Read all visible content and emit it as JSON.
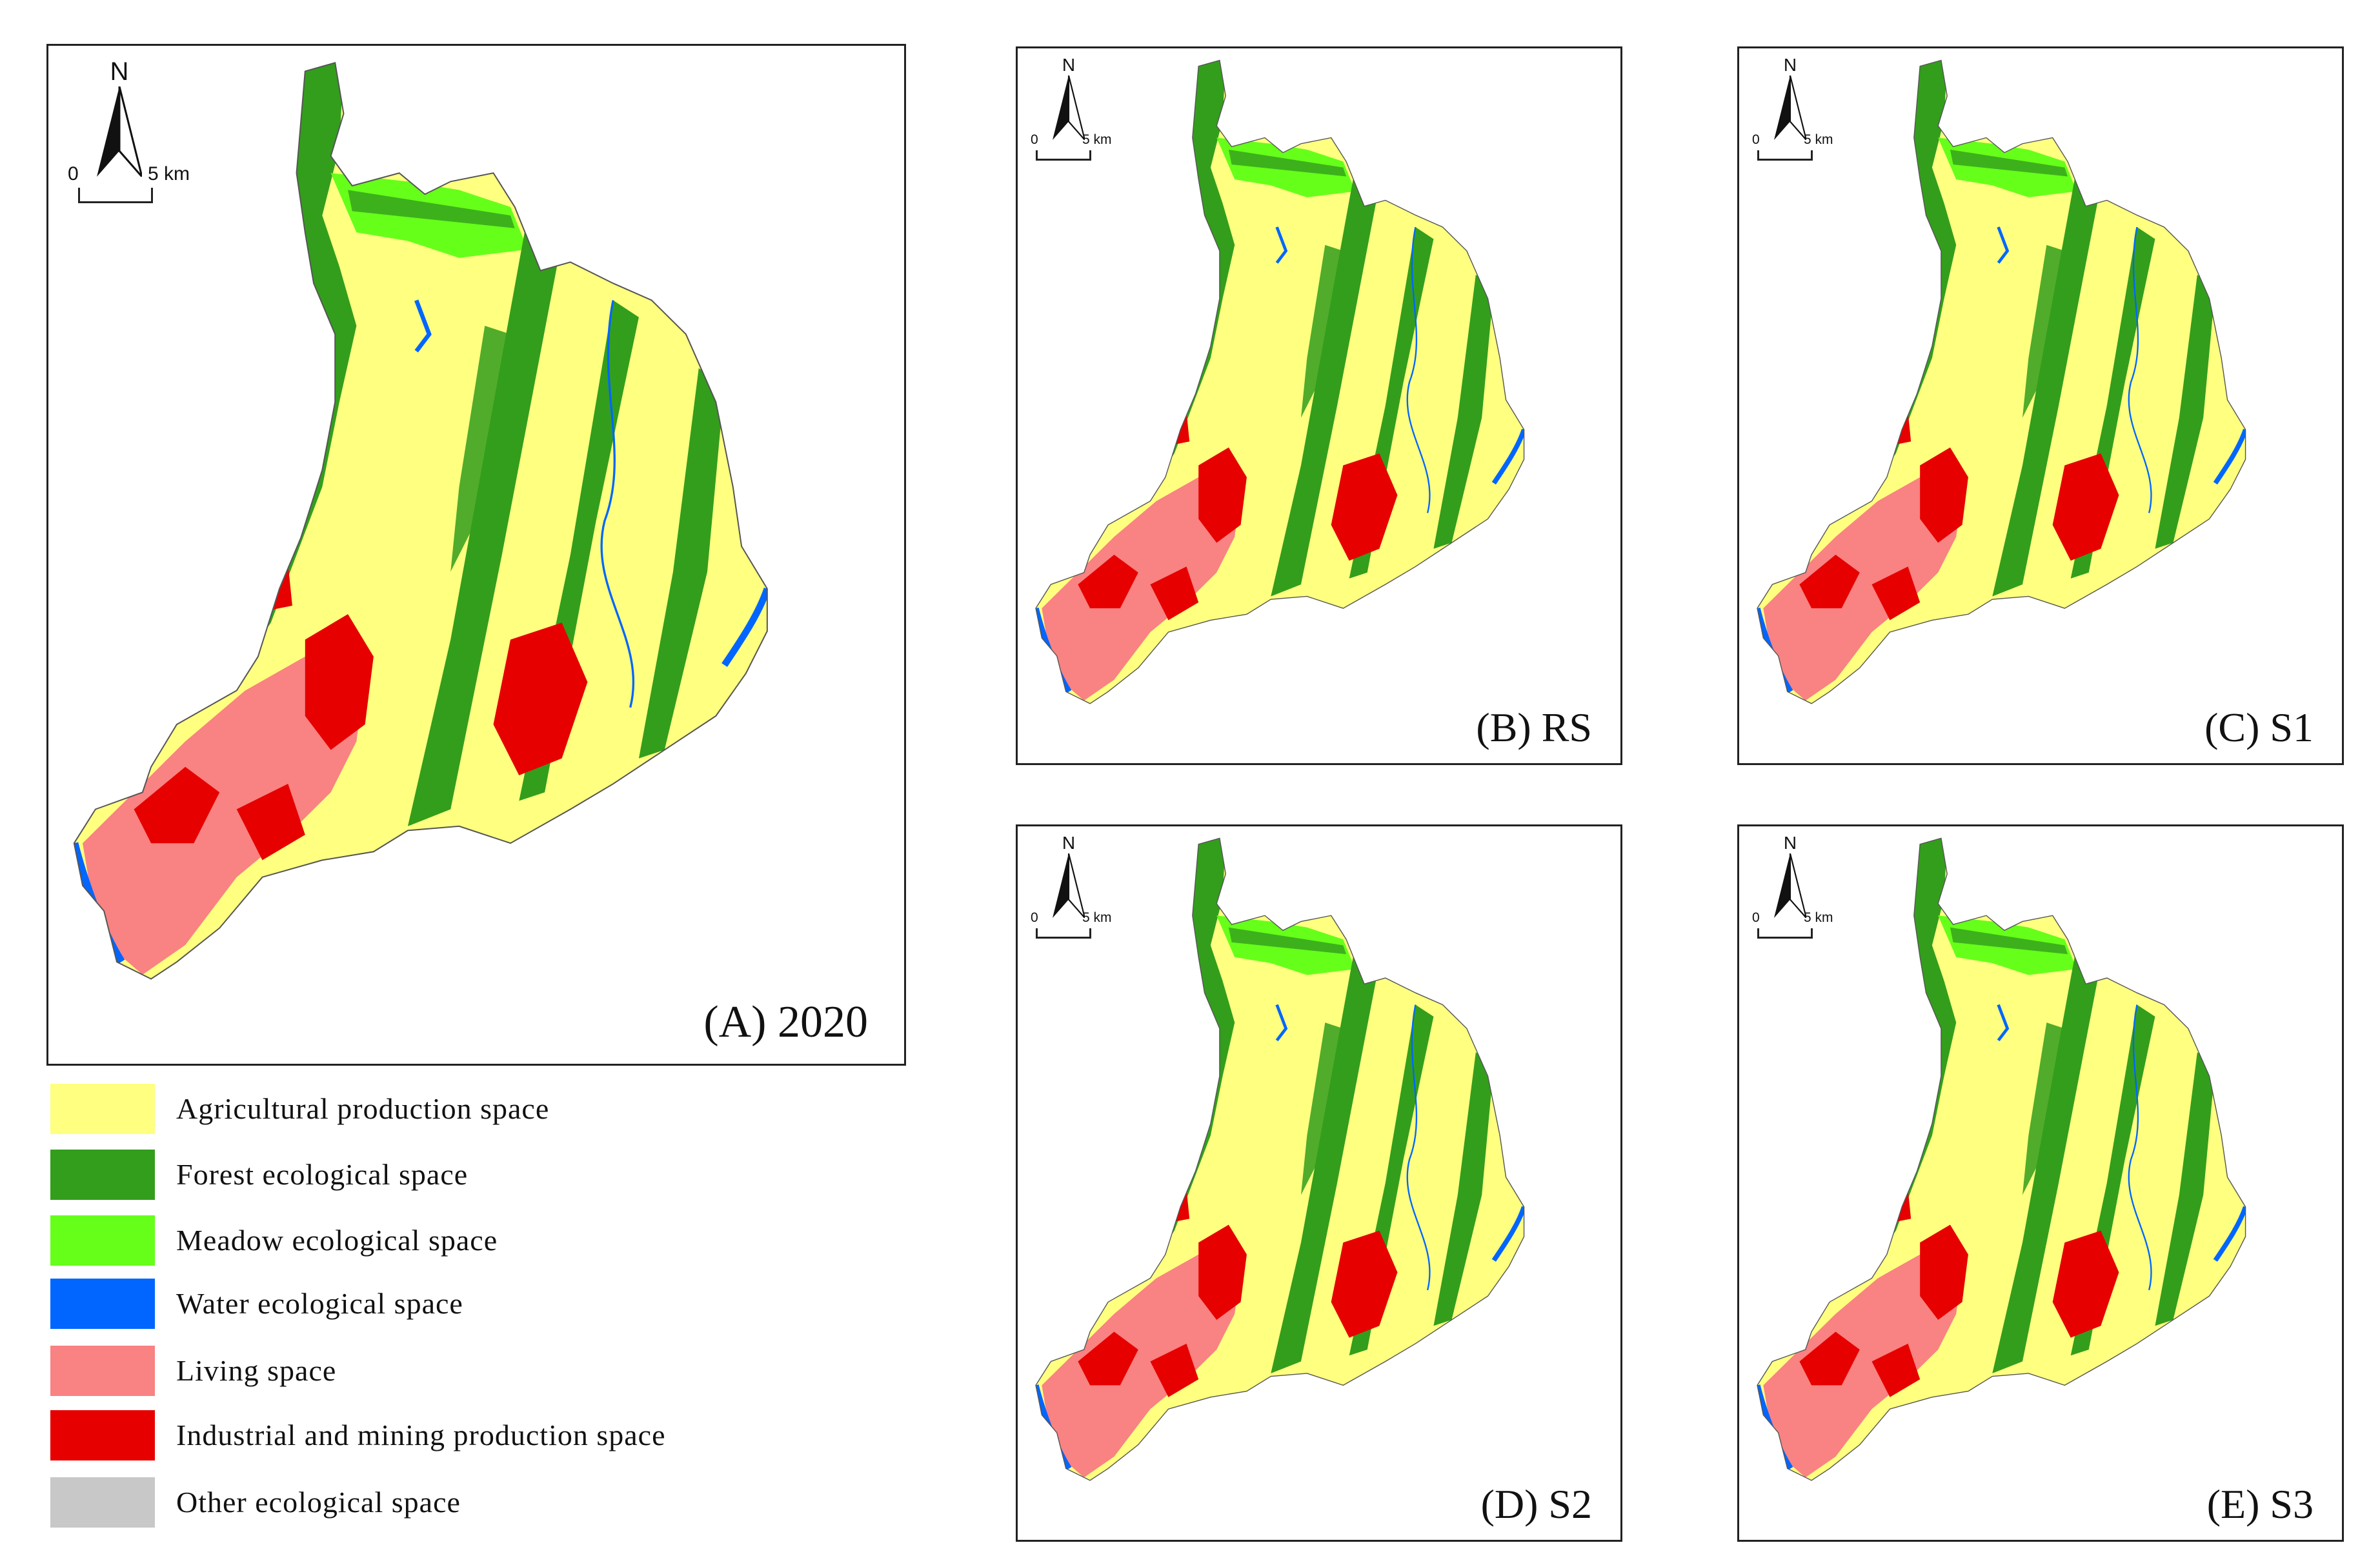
{
  "legend": [
    {
      "label": "Agricultural production space",
      "color": "#FFFF80"
    },
    {
      "label": "Forest ecological space",
      "color": "#339E1C"
    },
    {
      "label": "Meadow ecological space",
      "color": "#66FF1A"
    },
    {
      "label": "Water ecological space",
      "color": "#0066FF"
    },
    {
      "label": "Living space",
      "color": "#F98282"
    },
    {
      "label": "Industrial and mining production space",
      "color": "#E60000"
    },
    {
      "label": "Other ecological space",
      "color": "#C8C8C8"
    }
  ],
  "north_label": "N",
  "scale": {
    "start": "0",
    "end": "5 km"
  },
  "panels": [
    {
      "id": "A",
      "label": "(A) 2020"
    },
    {
      "id": "B",
      "label": "(B) RS"
    },
    {
      "id": "C",
      "label": "(C) S1"
    },
    {
      "id": "D",
      "label": "(D) S2"
    },
    {
      "id": "E",
      "label": "(E) S3"
    }
  ]
}
